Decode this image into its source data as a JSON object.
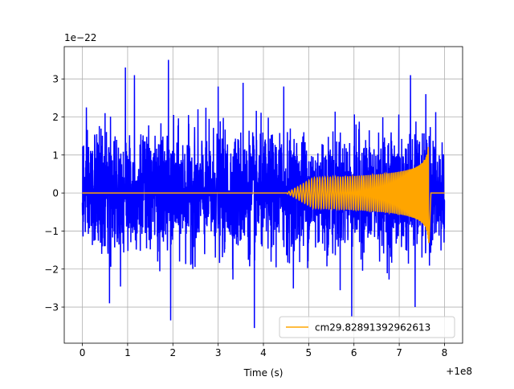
{
  "chart_data": {
    "type": "line",
    "title": "",
    "xlabel": "Time (s)",
    "ylabel": "",
    "x_offset_label": "+1e8",
    "y_scale_label": "1e−22",
    "xlim": [
      -0.4,
      8.4
    ],
    "ylim": [
      -3.95,
      3.85
    ],
    "x_ticks": [
      0,
      1,
      2,
      3,
      4,
      5,
      6,
      7,
      8
    ],
    "x_tick_labels": [
      "0",
      "1",
      "2",
      "3",
      "4",
      "5",
      "6",
      "7",
      "8"
    ],
    "y_ticks": [
      -3,
      -2,
      -1,
      0,
      1,
      2,
      3
    ],
    "y_tick_labels": [
      "−3",
      "−2",
      "−1",
      "0",
      "1",
      "2",
      "3"
    ],
    "grid": true,
    "legend_position": "lower-right",
    "series": [
      {
        "color": "#0000ff",
        "x_range": [
          0,
          8
        ],
        "typical_amplitude": [
          -1.8,
          1.8
        ],
        "peaks": [
          {
            "x": 0.5,
            "y": 2.1
          },
          {
            "x": 0.95,
            "y": 3.3
          },
          {
            "x": 1.15,
            "y": 3.1
          },
          {
            "x": 1.9,
            "y": 3.5
          },
          {
            "x": 3.0,
            "y": 2.8
          },
          {
            "x": 3.55,
            "y": 2.9
          },
          {
            "x": 4.45,
            "y": 2.8
          },
          {
            "x": 7.25,
            "y": 3.1
          },
          {
            "x": 0.6,
            "y": -2.9
          },
          {
            "x": 1.95,
            "y": -3.35
          },
          {
            "x": 3.8,
            "y": -3.55
          },
          {
            "x": 5.95,
            "y": -3.25
          },
          {
            "x": 7.35,
            "y": -3.0
          }
        ]
      },
      {
        "name": "cm29.82891392962613",
        "color": "#ffa500",
        "x_range": [
          0,
          8
        ],
        "envelope_start_x": 4.5,
        "peak_x": 7.65,
        "peak_amplitude": 1.35,
        "end_x": 7.7
      }
    ]
  }
}
